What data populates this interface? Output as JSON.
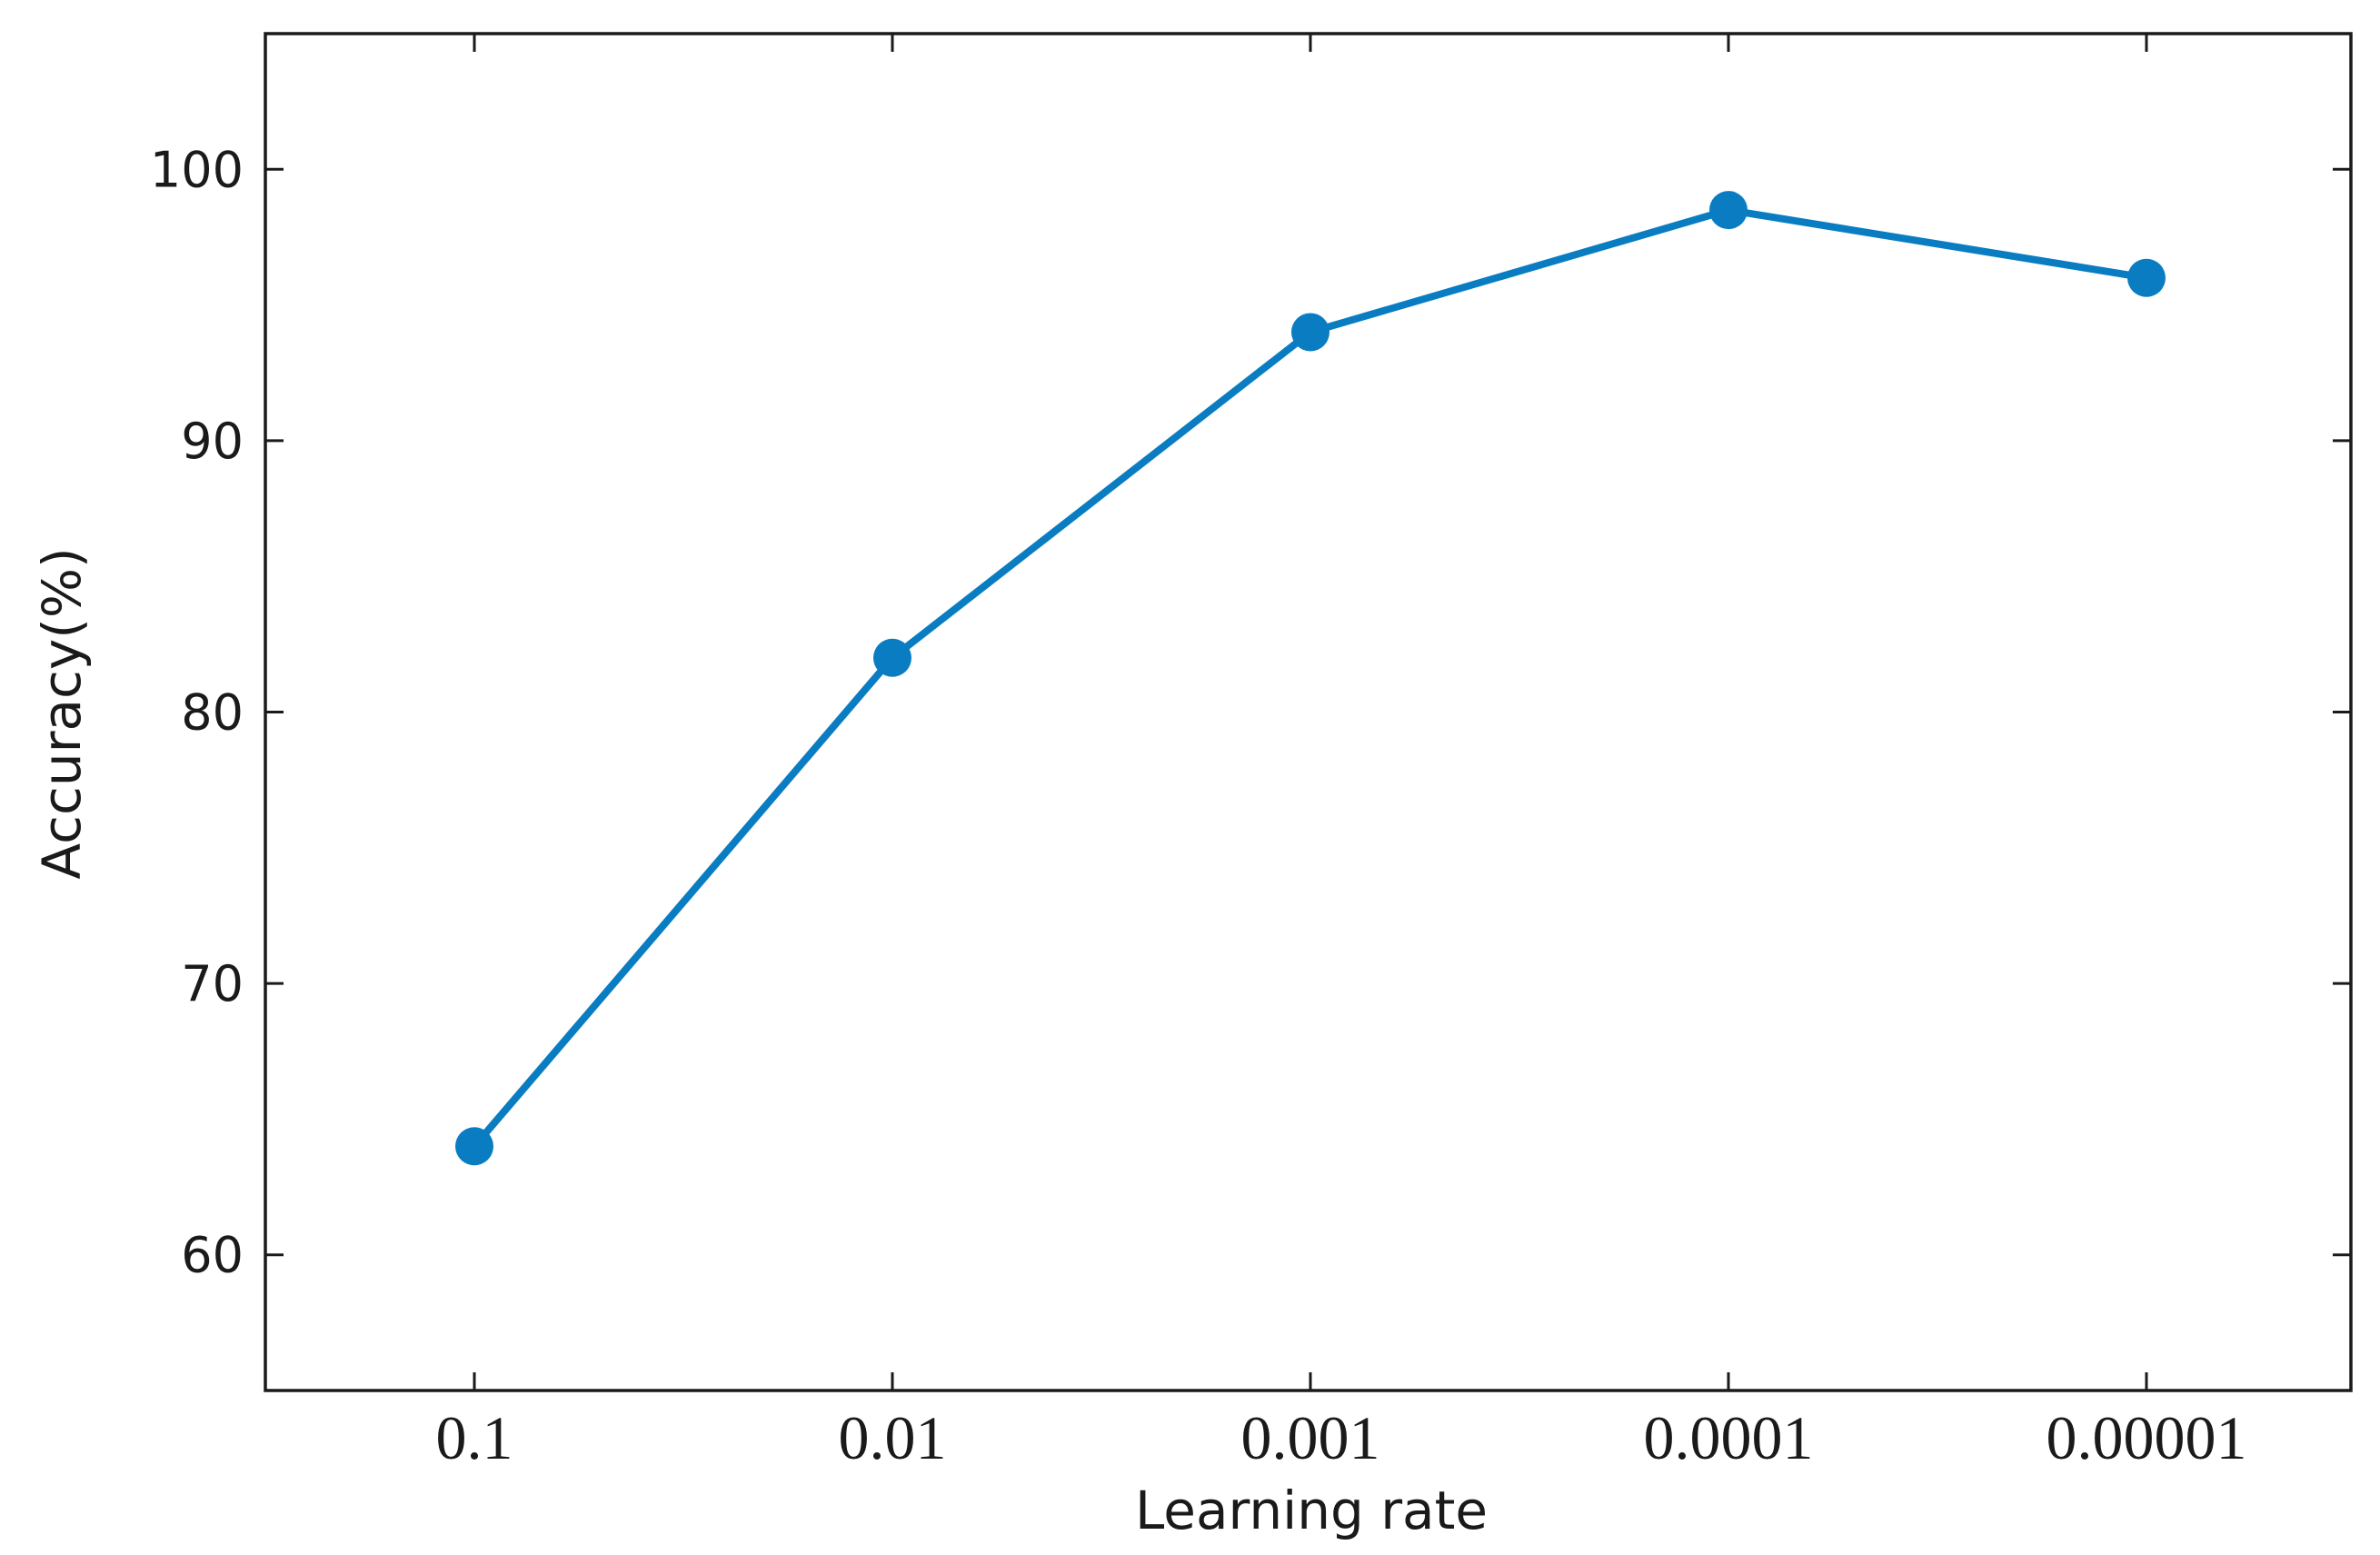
{
  "chart_data": {
    "type": "line",
    "categories": [
      "0.1",
      "0.01",
      "0.001",
      "0.0001",
      "0.00001"
    ],
    "series": [
      {
        "values": [
          64,
          82,
          94,
          98.5,
          96
        ]
      }
    ],
    "xlabel": "Learning rate",
    "ylabel": "Accuracy(%)",
    "ylim": [
      55,
      105
    ],
    "yticks": [
      60,
      70,
      80,
      90,
      100
    ],
    "grid": false,
    "color": "#0a7dc2"
  }
}
